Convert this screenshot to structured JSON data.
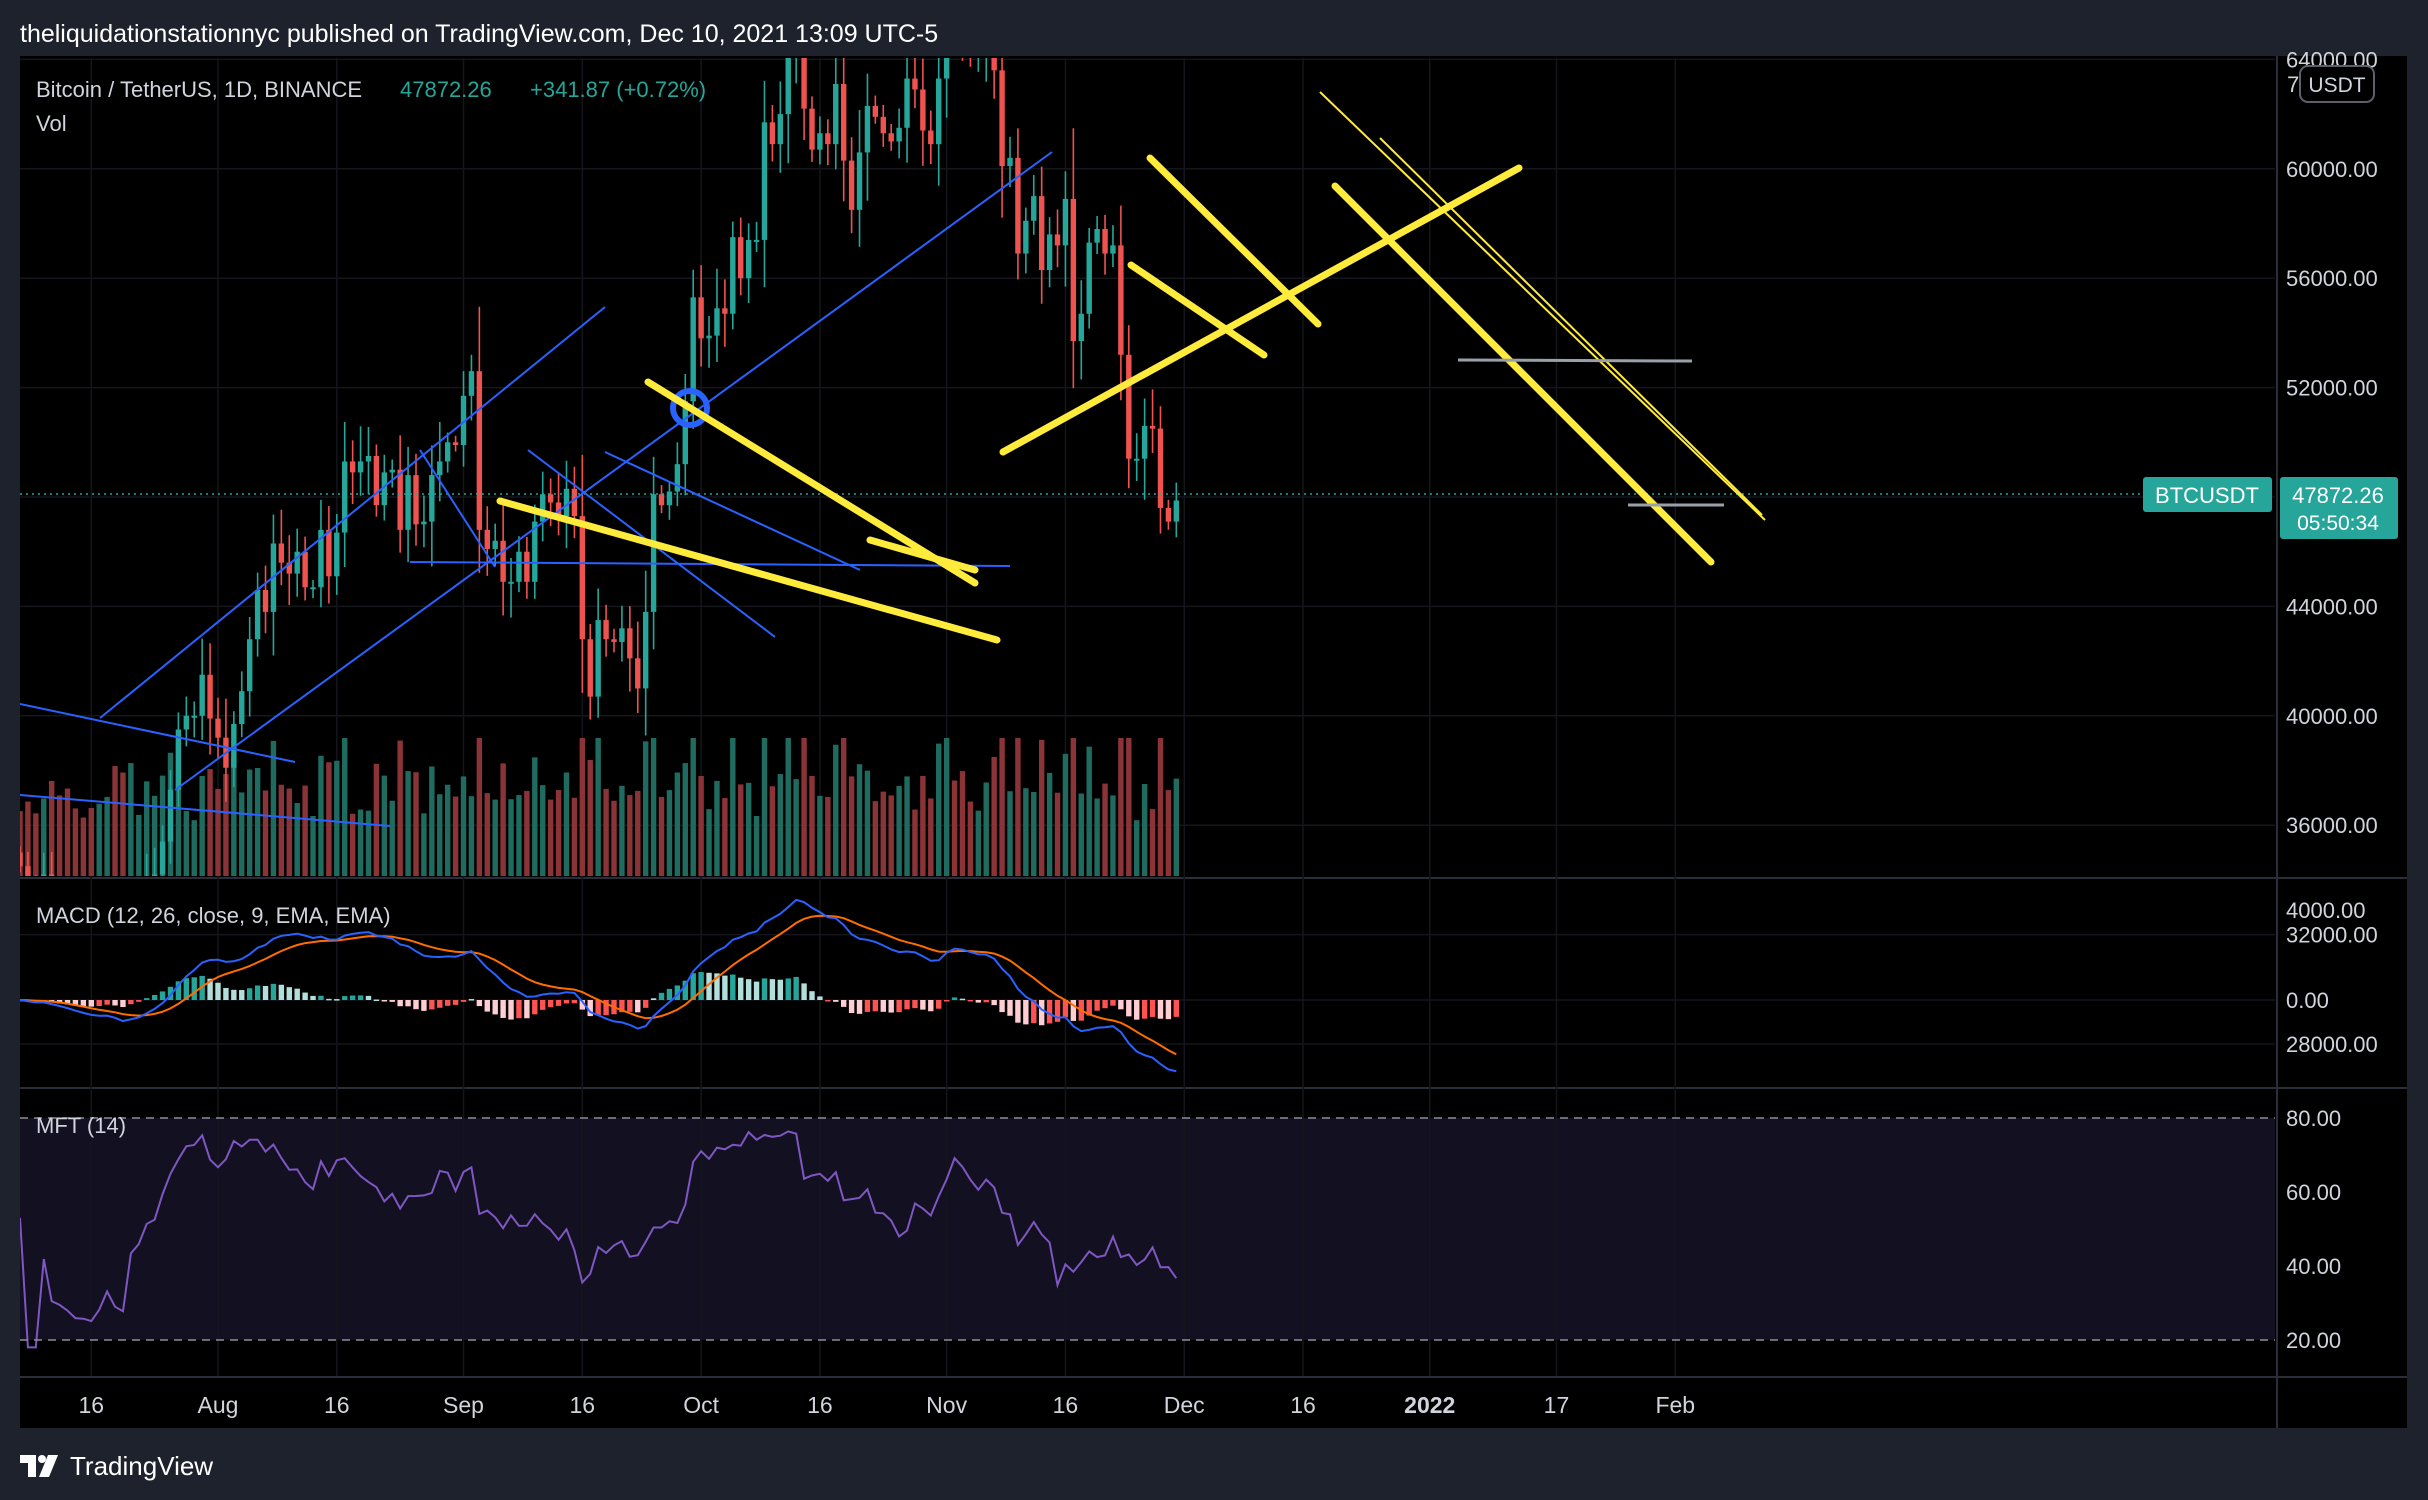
{
  "header": {
    "published_line": "theliquidationstationnyc published on TradingView.com, Dec 10, 2021 13:09 UTC-5"
  },
  "footer": {
    "brand": "TradingView"
  },
  "colors": {
    "background": "#000000",
    "frame": "#1e222d",
    "up": "#26a69a",
    "down": "#ef5350",
    "vol_up": "#1f6b5f",
    "vol_down": "#8b3438",
    "trendline_yellow": "#ffeb3b",
    "trendline_blue": "#2962ff",
    "macd_line": "#2962ff",
    "signal_line": "#ff6d00",
    "mfi_line": "#7e57c2",
    "price_tag": "#26a69a"
  },
  "price_pane": {
    "symbol_line": "Bitcoin / TetherUS, 1D, BINANCE",
    "last_price": "47872.26",
    "change": "+341.87 (+0.72%)",
    "volume_label": "Vol",
    "currency_badge": "USDT",
    "symbol_tag": "BTCUSDT",
    "price_tag": "47872.26",
    "countdown": "05:50:34",
    "top_partial_label": "7"
  },
  "macd_pane": {
    "title": "MACD (12, 26, close, 9, EMA, EMA)",
    "axis_labels": [
      "4000.00",
      "0.00"
    ]
  },
  "mfi_pane": {
    "title": "MFT (14)",
    "axis_labels": [
      "80.00",
      "60.00",
      "40.00",
      "20.00"
    ]
  },
  "time_axis": {
    "labels": [
      "16",
      "Aug",
      "16",
      "Sep",
      "16",
      "Oct",
      "16",
      "Nov",
      "16",
      "Dec",
      "16",
      "2022",
      "17",
      "Feb"
    ]
  },
  "chart_data": {
    "type": "candlestick",
    "symbol": "BTCUSDT",
    "interval": "1D",
    "x_range": [
      "2021-07-07",
      "2022-02-01"
    ],
    "y_range": [
      25000,
      70000
    ],
    "y_ticks": [
      28000,
      32000,
      36000,
      40000,
      44000,
      48000,
      52000,
      56000,
      60000,
      64000,
      68000
    ],
    "closes": [
      34500,
      33800,
      33700,
      34200,
      33200,
      32900,
      32500,
      31900,
      31800,
      31500,
      31800,
      32200,
      30800,
      29800,
      32100,
      32300,
      33600,
      34200,
      35400,
      37300,
      39500,
      40000,
      40000,
      41500,
      39900,
      39200,
      38100,
      39700,
      40900,
      42800,
      44600,
      43800,
      46300,
      45600,
      45200,
      46000,
      44700,
      44700,
      46800,
      45100,
      46700,
      49300,
      48900,
      49300,
      49500,
      47700,
      48900,
      49000,
      46800,
      48800,
      47000,
      47100,
      48800,
      49300,
      50000,
      49900,
      51700,
      52600,
      46800,
      46100,
      46400,
      44900,
      44900,
      46000,
      44900,
      47100,
      48100,
      47800,
      47300,
      48300,
      47300,
      42800,
      40700,
      43500,
      42800,
      42700,
      43200,
      42100,
      41000,
      43800,
      48100,
      47700,
      48200,
      49200,
      51500,
      55300,
      53800,
      53900,
      54900,
      54700,
      57500,
      56000,
      57400,
      57400,
      61700,
      60900,
      62000,
      64300,
      66000,
      62200,
      60700,
      61300,
      60900,
      63100,
      60300,
      58500,
      60600,
      62300,
      61900,
      61300,
      61000,
      61500,
      63300,
      62900,
      61400,
      60900,
      63300,
      67600,
      66900,
      64900,
      64200,
      64400,
      65500,
      63600,
      60100,
      60400,
      56900,
      58100,
      59000,
      56300,
      57600,
      57200,
      58900,
      53700,
      54700,
      57300,
      57800,
      56900,
      57200,
      53200,
      49400,
      49400,
      50600,
      50500,
      47600,
      47100,
      47872
    ],
    "volume": {
      "bar_colors_follow_candles": true,
      "relative_range": [
        0.15,
        1.0
      ]
    },
    "indicators": {
      "macd": {
        "fast": 12,
        "slow": 26,
        "signal": 9,
        "source": "close",
        "ma_type": "EMA"
      },
      "mft": {
        "length": 14,
        "y_range": [
          15,
          90
        ],
        "bands": [
          80,
          20
        ]
      }
    }
  }
}
